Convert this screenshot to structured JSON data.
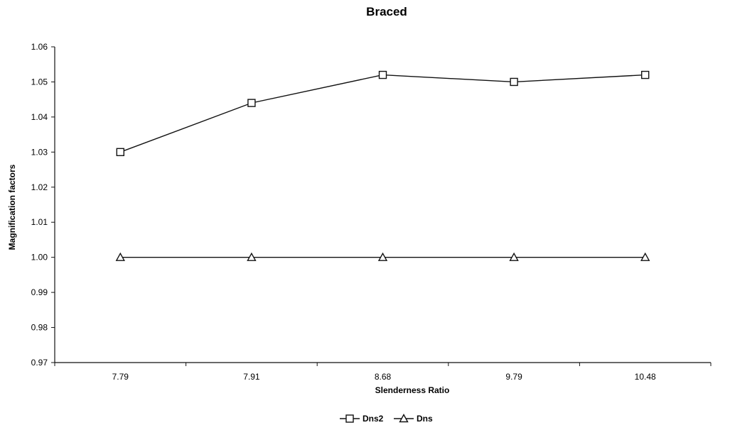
{
  "chart_data": {
    "type": "line",
    "title": "Braced",
    "xlabel": "Slenderness Ratio",
    "ylabel": "Magnification factors",
    "categories": [
      "7.79",
      "7.91",
      "8.68",
      "9.79",
      "10.48"
    ],
    "y_ticks": [
      "1.06",
      "1.05",
      "1.04",
      "1.03",
      "1.02",
      "1.01",
      "1.00",
      "0.99",
      "0.98",
      "0.97"
    ],
    "ylim": [
      0.97,
      1.06
    ],
    "grid": false,
    "legend_position": "bottom",
    "series": [
      {
        "name": "Dns2",
        "marker": "square",
        "values": [
          1.03,
          1.044,
          1.052,
          1.05,
          1.052
        ]
      },
      {
        "name": "Dns",
        "marker": "triangle",
        "values": [
          1.0,
          1.0,
          1.0,
          1.0,
          1.0
        ]
      }
    ],
    "colors": {
      "line": "#111111",
      "marker_fill": "#ffffff"
    }
  }
}
